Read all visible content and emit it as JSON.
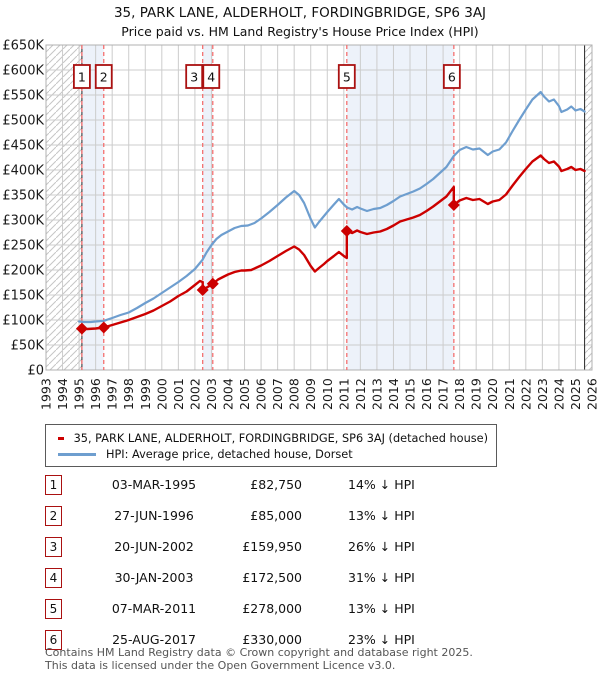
{
  "title": "35, PARK LANE, ALDERHOLT, FORDINGBRIDGE, SP6 3AJ",
  "subtitle": "Price paid vs. HM Land Registry's House Price Index (HPI)",
  "legend": [
    {
      "label": "35, PARK LANE, ALDERHOLT, FORDINGBRIDGE, SP6 3AJ (detached house)",
      "color": "#cc0000"
    },
    {
      "label": "HPI: Average price, detached house, Dorset",
      "color": "#6e9ecf"
    }
  ],
  "transactions": [
    {
      "num": "1",
      "date": "03-MAR-1995",
      "price": "£82,750",
      "hpi_delta": "14% ↓ HPI"
    },
    {
      "num": "2",
      "date": "27-JUN-1996",
      "price": "£85,000",
      "hpi_delta": "13% ↓ HPI"
    },
    {
      "num": "3",
      "date": "20-JUN-2002",
      "price": "£159,950",
      "hpi_delta": "26% ↓ HPI"
    },
    {
      "num": "4",
      "date": "30-JAN-2003",
      "price": "£172,500",
      "hpi_delta": "31% ↓ HPI"
    },
    {
      "num": "5",
      "date": "07-MAR-2011",
      "price": "£278,000",
      "hpi_delta": "13% ↓ HPI"
    },
    {
      "num": "6",
      "date": "25-AUG-2017",
      "price": "£330,000",
      "hpi_delta": "23% ↓ HPI"
    }
  ],
  "footer_lines": [
    "Contains HM Land Registry data © Crown copyright and database right 2025.",
    "This data is licensed under the Open Government Licence v3.0."
  ],
  "colors": {
    "price_line": "#cc0000",
    "hpi_line": "#6e9ecf",
    "sale_box_border": "#aa1111",
    "dashed_line": "#f47070",
    "band_fill": "#edf2fa",
    "grid": "#cccccc",
    "plot_border": "#b0b0b0",
    "hatch": "#c6c6c6",
    "hatch_edge": "#3a3a3a",
    "axis_text": "#1a1a1a"
  },
  "chart_data": {
    "type": "line",
    "title": "Price paid vs. HPI, 35 Park Lane, Alderholt",
    "x_range": [
      1993,
      2026
    ],
    "y_range_k": [
      0,
      650
    ],
    "y_tick_step_k": 50,
    "y_tick_labels": [
      "£0",
      "£50K",
      "£100K",
      "£150K",
      "£200K",
      "£250K",
      "£300K",
      "£350K",
      "£400K",
      "£450K",
      "£500K",
      "£550K",
      "£600K",
      "£650K"
    ],
    "x_tick_years": [
      1993,
      1994,
      1995,
      1996,
      1997,
      1998,
      1999,
      2000,
      2001,
      2002,
      2003,
      2004,
      2005,
      2006,
      2007,
      2008,
      2009,
      2010,
      2011,
      2012,
      2013,
      2014,
      2015,
      2016,
      2017,
      2018,
      2019,
      2020,
      2021,
      2022,
      2023,
      2024,
      2025,
      2026
    ],
    "data_extent": [
      1995.17,
      2025.55
    ],
    "ownership_bands": [
      [
        1995.17,
        1996.49
      ],
      [
        2002.47,
        2003.08
      ],
      [
        2011.18,
        2017.65
      ]
    ],
    "sales": [
      {
        "label": "1",
        "x": 1995.17,
        "y_k": 82.75,
        "box_dx": 0
      },
      {
        "label": "2",
        "x": 1996.49,
        "y_k": 85,
        "box_dx": 0
      },
      {
        "label": "3",
        "x": 2002.47,
        "y_k": 159.95,
        "box_dx": -8.5
      },
      {
        "label": "4",
        "x": 2003.08,
        "y_k": 172.5,
        "box_dx": -1.5
      },
      {
        "label": "5",
        "x": 2011.18,
        "y_k": 278,
        "box_dx": 0
      },
      {
        "label": "6",
        "x": 2017.65,
        "y_k": 330,
        "box_dx": -2
      }
    ],
    "series": [
      {
        "name": "price-paid",
        "color": "#cc0000",
        "width": 2.4,
        "points": [
          [
            1995.17,
            82.75
          ],
          [
            1995.5,
            82
          ],
          [
            1996.0,
            83
          ],
          [
            1996.49,
            85
          ],
          [
            1997.0,
            90
          ],
          [
            1997.5,
            95
          ],
          [
            1998.0,
            100
          ],
          [
            1998.5,
            106
          ],
          [
            1999.0,
            112
          ],
          [
            1999.5,
            119
          ],
          [
            2000.0,
            128
          ],
          [
            2000.5,
            137
          ],
          [
            2001.0,
            148
          ],
          [
            2001.5,
            157
          ],
          [
            2002.0,
            170
          ],
          [
            2002.3,
            178
          ],
          [
            2002.47,
            176
          ],
          [
            2002.47,
            159.95
          ],
          [
            2003.08,
            172.5
          ],
          [
            2003.4,
            181
          ],
          [
            2003.7,
            186
          ],
          [
            2004.0,
            191
          ],
          [
            2004.4,
            196
          ],
          [
            2004.8,
            199
          ],
          [
            2005.0,
            199
          ],
          [
            2005.4,
            200
          ],
          [
            2005.8,
            206
          ],
          [
            2006.0,
            209
          ],
          [
            2006.5,
            218
          ],
          [
            2007.0,
            228
          ],
          [
            2007.5,
            238
          ],
          [
            2008.0,
            247
          ],
          [
            2008.3,
            241
          ],
          [
            2008.6,
            230
          ],
          [
            2009.0,
            208
          ],
          [
            2009.25,
            197
          ],
          [
            2009.5,
            204
          ],
          [
            2009.8,
            212
          ],
          [
            2010.0,
            218
          ],
          [
            2010.4,
            228
          ],
          [
            2010.7,
            236
          ],
          [
            2011.0,
            228
          ],
          [
            2011.18,
            224
          ],
          [
            2011.18,
            278
          ],
          [
            2011.5,
            274
          ],
          [
            2011.8,
            279
          ],
          [
            2012.0,
            276
          ],
          [
            2012.4,
            272
          ],
          [
            2012.8,
            275
          ],
          [
            2013.2,
            277
          ],
          [
            2013.6,
            282
          ],
          [
            2014.0,
            289
          ],
          [
            2014.4,
            297
          ],
          [
            2014.8,
            301
          ],
          [
            2015.2,
            305
          ],
          [
            2015.6,
            310
          ],
          [
            2016.0,
            318
          ],
          [
            2016.4,
            327
          ],
          [
            2016.8,
            337
          ],
          [
            2017.2,
            347
          ],
          [
            2017.65,
            366
          ],
          [
            2017.65,
            330
          ],
          [
            2018.0,
            339
          ],
          [
            2018.4,
            344
          ],
          [
            2018.8,
            340
          ],
          [
            2019.2,
            342
          ],
          [
            2019.7,
            332
          ],
          [
            2020.0,
            337
          ],
          [
            2020.4,
            340
          ],
          [
            2020.8,
            351
          ],
          [
            2021.2,
            369
          ],
          [
            2021.6,
            386
          ],
          [
            2022.0,
            402
          ],
          [
            2022.4,
            417
          ],
          [
            2022.9,
            429
          ],
          [
            2023.1,
            422
          ],
          [
            2023.4,
            414
          ],
          [
            2023.7,
            417
          ],
          [
            2024.0,
            407
          ],
          [
            2024.15,
            398
          ],
          [
            2024.5,
            402
          ],
          [
            2024.75,
            406
          ],
          [
            2025.0,
            400
          ],
          [
            2025.3,
            402
          ],
          [
            2025.55,
            398
          ]
        ]
      },
      {
        "name": "hpi",
        "color": "#6e9ecf",
        "width": 2.2,
        "points": [
          [
            1995.0,
            97
          ],
          [
            1995.3,
            96
          ],
          [
            1995.7,
            96
          ],
          [
            1996.0,
            97
          ],
          [
            1996.5,
            98.5
          ],
          [
            1997.0,
            104
          ],
          [
            1997.5,
            110
          ],
          [
            1998.0,
            115
          ],
          [
            1998.5,
            124
          ],
          [
            1999.0,
            134
          ],
          [
            1999.5,
            143
          ],
          [
            2000.0,
            154
          ],
          [
            2000.5,
            165
          ],
          [
            2001.0,
            176
          ],
          [
            2001.5,
            188
          ],
          [
            2002.0,
            202
          ],
          [
            2002.45,
            220
          ],
          [
            2002.7,
            235
          ],
          [
            2003.0,
            250
          ],
          [
            2003.3,
            262
          ],
          [
            2003.6,
            270
          ],
          [
            2004.0,
            277
          ],
          [
            2004.4,
            284
          ],
          [
            2004.8,
            288
          ],
          [
            2005.2,
            289
          ],
          [
            2005.6,
            294
          ],
          [
            2006.0,
            303
          ],
          [
            2006.5,
            316
          ],
          [
            2007.0,
            330
          ],
          [
            2007.5,
            345
          ],
          [
            2008.0,
            358
          ],
          [
            2008.3,
            350
          ],
          [
            2008.6,
            334
          ],
          [
            2009.0,
            302
          ],
          [
            2009.25,
            285
          ],
          [
            2009.5,
            296
          ],
          [
            2009.8,
            308
          ],
          [
            2010.0,
            316
          ],
          [
            2010.4,
            331
          ],
          [
            2010.7,
            342
          ],
          [
            2011.0,
            331
          ],
          [
            2011.2,
            325
          ],
          [
            2011.5,
            321
          ],
          [
            2011.8,
            326
          ],
          [
            2012.0,
            323
          ],
          [
            2012.4,
            318
          ],
          [
            2012.8,
            322
          ],
          [
            2013.2,
            324
          ],
          [
            2013.6,
            330
          ],
          [
            2014.0,
            338
          ],
          [
            2014.4,
            347
          ],
          [
            2014.8,
            352
          ],
          [
            2015.2,
            357
          ],
          [
            2015.6,
            363
          ],
          [
            2016.0,
            372
          ],
          [
            2016.4,
            382
          ],
          [
            2016.8,
            394
          ],
          [
            2017.2,
            406
          ],
          [
            2017.65,
            428
          ],
          [
            2018.0,
            440
          ],
          [
            2018.4,
            446
          ],
          [
            2018.8,
            441
          ],
          [
            2019.2,
            443
          ],
          [
            2019.7,
            430
          ],
          [
            2020.0,
            437
          ],
          [
            2020.4,
            441
          ],
          [
            2020.8,
            455
          ],
          [
            2021.2,
            478
          ],
          [
            2021.6,
            500
          ],
          [
            2022.0,
            521
          ],
          [
            2022.4,
            541
          ],
          [
            2022.9,
            556
          ],
          [
            2023.1,
            547
          ],
          [
            2023.4,
            537
          ],
          [
            2023.7,
            541
          ],
          [
            2024.0,
            528
          ],
          [
            2024.15,
            516
          ],
          [
            2024.5,
            521
          ],
          [
            2024.75,
            527
          ],
          [
            2025.0,
            519
          ],
          [
            2025.3,
            522
          ],
          [
            2025.55,
            517
          ]
        ]
      }
    ],
    "legend_position": "bottom",
    "grid": true
  }
}
